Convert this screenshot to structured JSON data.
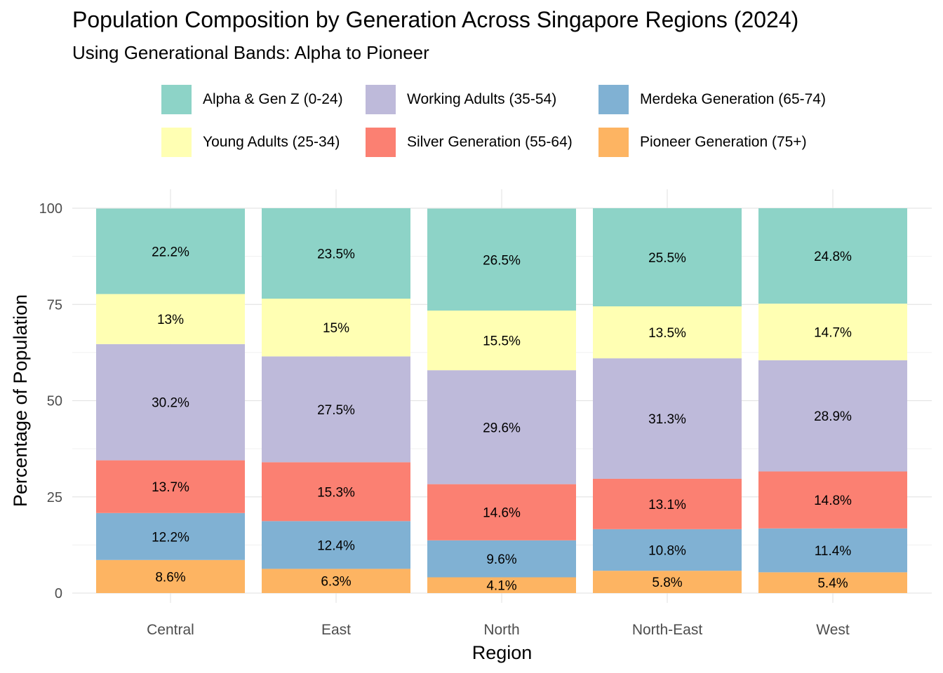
{
  "title": "Population Composition by Generation Across Singapore Regions (2024)",
  "subtitle": "Using Generational Bands: Alpha to Pioneer",
  "chart_data": {
    "type": "bar",
    "stacked": true,
    "categories": [
      "Central",
      "East",
      "North",
      "North-East",
      "West"
    ],
    "xlabel": "Region",
    "ylabel": "Percentage of Population",
    "ylim": [
      0,
      100
    ],
    "yticks": [
      "0",
      "25",
      "50",
      "75",
      "100"
    ],
    "grid": true,
    "legend_position": "top",
    "series": [
      {
        "name": "Pioneer Generation (75+)",
        "color": "#FDB462",
        "values": [
          8.6,
          6.3,
          4.1,
          5.8,
          5.4
        ],
        "labels": [
          "8.6%",
          "6.3%",
          "4.1%",
          "5.8%",
          "5.4%"
        ]
      },
      {
        "name": "Merdeka Generation (65-74)",
        "color": "#80B1D3",
        "values": [
          12.2,
          12.4,
          9.6,
          10.8,
          11.4
        ],
        "labels": [
          "12.2%",
          "12.4%",
          "9.6%",
          "10.8%",
          "11.4%"
        ]
      },
      {
        "name": "Silver Generation (55-64)",
        "color": "#FB8072",
        "values": [
          13.7,
          15.3,
          14.6,
          13.1,
          14.8
        ],
        "labels": [
          "13.7%",
          "15.3%",
          "14.6%",
          "13.1%",
          "14.8%"
        ]
      },
      {
        "name": "Working Adults (35-54)",
        "color": "#BEBADA",
        "values": [
          30.2,
          27.5,
          29.6,
          31.3,
          28.9
        ],
        "labels": [
          "30.2%",
          "27.5%",
          "29.6%",
          "31.3%",
          "28.9%"
        ]
      },
      {
        "name": "Young Adults (25-34)",
        "color": "#FFFFB3",
        "values": [
          13,
          15,
          15.5,
          13.5,
          14.7
        ],
        "labels": [
          "13%",
          "15%",
          "15.5%",
          "13.5%",
          "14.7%"
        ]
      },
      {
        "name": "Alpha & Gen Z (0-24)",
        "color": "#8DD3C7",
        "values": [
          22.2,
          23.5,
          26.5,
          25.5,
          24.8
        ],
        "labels": [
          "22.2%",
          "23.5%",
          "26.5%",
          "25.5%",
          "24.8%"
        ]
      }
    ]
  },
  "legend": [
    {
      "label": "Alpha & Gen Z (0-24)",
      "color": "#8DD3C7"
    },
    {
      "label": "Young Adults (25-34)",
      "color": "#FFFFB3"
    },
    {
      "label": "Working Adults (35-54)",
      "color": "#BEBADA"
    },
    {
      "label": "Silver Generation (55-64)",
      "color": "#FB8072"
    },
    {
      "label": "Merdeka Generation (65-74)",
      "color": "#80B1D3"
    },
    {
      "label": "Pioneer Generation (75+)",
      "color": "#FDB462"
    }
  ]
}
